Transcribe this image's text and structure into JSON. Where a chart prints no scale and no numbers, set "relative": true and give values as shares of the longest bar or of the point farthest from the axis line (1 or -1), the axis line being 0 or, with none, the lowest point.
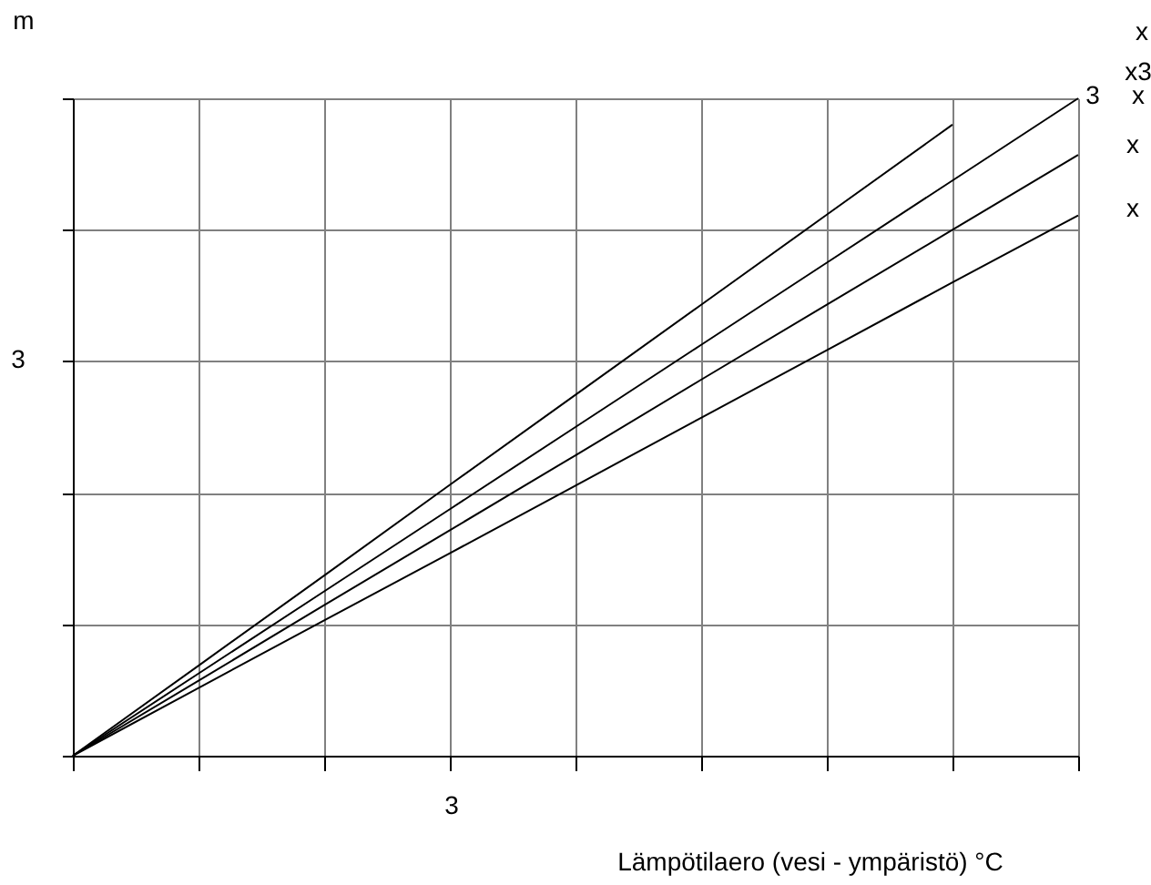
{
  "chart_data": {
    "type": "line",
    "relative": true,
    "xlabel": "Lämpötilaero (vesi - ympäristö) °C",
    "ylabel": "m",
    "grid": true,
    "legend": false,
    "marker": "none",
    "line_style": "solid",
    "categories": [
      null,
      null,
      null,
      null,
      null,
      null,
      null,
      null,
      null
    ],
    "series": [
      {
        "color": "#000000",
        "values": [
          0,
          0.137,
          0.274,
          0.412,
          0.549,
          0.686,
          0.823,
          0.96,
          null
        ]
      },
      {
        "color": "#000000",
        "values": [
          0,
          0.125,
          0.25,
          0.375,
          0.5,
          0.625,
          0.75,
          0.875,
          1
        ]
      },
      {
        "color": "#000000",
        "values": [
          0,
          0.114,
          0.229,
          0.343,
          0.457,
          0.572,
          0.686,
          0.8,
          0.914
        ]
      },
      {
        "color": "#000000",
        "values": [
          0,
          0.103,
          0.206,
          0.308,
          0.411,
          0.514,
          0.617,
          0.72,
          0.822
        ]
      }
    ],
    "annotations": [
      "3",
      "3",
      "x",
      "x3",
      "3",
      "x",
      "x",
      "x"
    ]
  }
}
